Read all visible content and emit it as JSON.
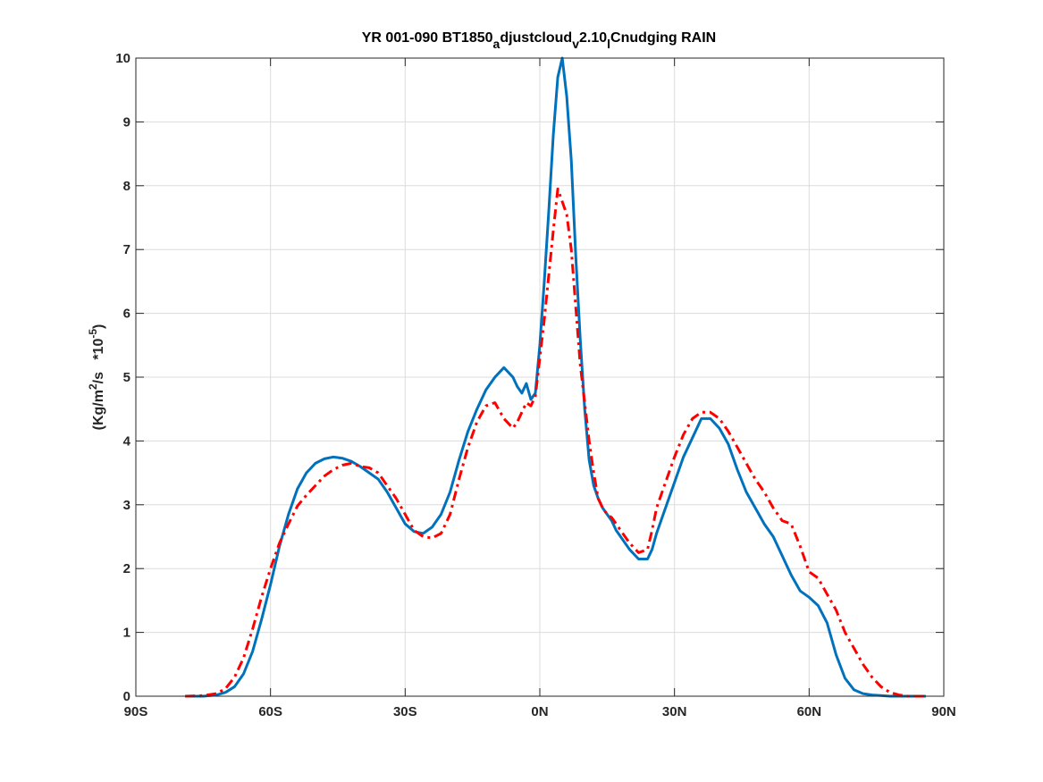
{
  "chart_data": {
    "type": "line",
    "title": {
      "prefix": "YR 001-090 BT1850",
      "sub1": "a",
      "mid1": "djustcloud",
      "sub2": "v",
      "mid2": "2.10",
      "sub3": "l",
      "suffix": "Cnudging RAIN"
    },
    "ylabel": {
      "prefix": "(Kg/m",
      "sup1": "2",
      "mid": "/s   *10",
      "sup2": "-5",
      "suffix": ")"
    },
    "xlim": [
      -90,
      90
    ],
    "ylim": [
      0,
      10
    ],
    "x_ticks": [
      -90,
      -60,
      -30,
      0,
      30,
      60,
      90
    ],
    "x_tick_labels": [
      "90S",
      "60S",
      "30S",
      "0N",
      "30N",
      "60N",
      "90N"
    ],
    "y_ticks": [
      0,
      1,
      2,
      3,
      4,
      5,
      6,
      7,
      8,
      9,
      10
    ],
    "y_tick_labels": [
      "0",
      "1",
      "2",
      "3",
      "4",
      "5",
      "6",
      "7",
      "8",
      "9",
      "10"
    ],
    "grid": true,
    "series": [
      {
        "color": "#0072BD",
        "style": "solid",
        "x": [
          -79,
          -75,
          -72,
          -70,
          -68,
          -66,
          -64,
          -62,
          -60,
          -58,
          -56,
          -54,
          -52,
          -50,
          -48,
          -46,
          -44,
          -42,
          -40,
          -38,
          -36,
          -34,
          -32,
          -30,
          -28,
          -26,
          -24,
          -22,
          -20,
          -18,
          -16,
          -14,
          -12,
          -10,
          -8,
          -6,
          -5,
          -4,
          -3,
          -2,
          -1,
          0,
          1,
          2,
          3,
          4,
          5,
          6,
          7,
          8,
          9,
          10,
          11,
          12,
          13,
          14,
          15,
          16,
          17,
          18,
          20,
          22,
          24,
          25,
          26,
          28,
          30,
          32,
          34,
          36,
          38,
          40,
          42,
          44,
          46,
          48,
          50,
          52,
          54,
          56,
          58,
          60,
          62,
          64,
          66,
          68,
          70,
          72,
          74,
          76,
          78,
          80,
          82,
          84,
          86
        ],
        "y": [
          0.0,
          0.0,
          0.02,
          0.06,
          0.15,
          0.35,
          0.7,
          1.2,
          1.75,
          2.35,
          2.85,
          3.25,
          3.5,
          3.65,
          3.72,
          3.75,
          3.73,
          3.68,
          3.6,
          3.5,
          3.4,
          3.2,
          2.95,
          2.7,
          2.58,
          2.55,
          2.65,
          2.85,
          3.2,
          3.7,
          4.15,
          4.5,
          4.8,
          5.0,
          5.15,
          5.0,
          4.85,
          4.75,
          4.9,
          4.65,
          4.75,
          5.5,
          6.5,
          7.6,
          8.8,
          9.7,
          10.0,
          9.4,
          8.4,
          6.9,
          5.6,
          4.5,
          3.7,
          3.3,
          3.1,
          2.95,
          2.85,
          2.75,
          2.6,
          2.5,
          2.3,
          2.15,
          2.15,
          2.3,
          2.55,
          2.95,
          3.35,
          3.75,
          4.05,
          4.35,
          4.35,
          4.2,
          3.95,
          3.55,
          3.2,
          2.95,
          2.7,
          2.5,
          2.2,
          1.9,
          1.65,
          1.55,
          1.42,
          1.15,
          0.65,
          0.28,
          0.1,
          0.04,
          0.02,
          0.01,
          0.0,
          0.0,
          0.0,
          0.0,
          0.0
        ]
      },
      {
        "color": "#FF0000",
        "style": "dash-dot",
        "x": [
          -79,
          -75,
          -72,
          -70,
          -68,
          -66,
          -64,
          -62,
          -60,
          -58,
          -56,
          -54,
          -52,
          -50,
          -48,
          -46,
          -44,
          -42,
          -40,
          -38,
          -36,
          -34,
          -32,
          -30,
          -28,
          -26,
          -24,
          -22,
          -20,
          -18,
          -16,
          -14,
          -12,
          -10,
          -8,
          -6,
          -5,
          -4,
          -3,
          -2,
          -1,
          0,
          1,
          2,
          3,
          4,
          5,
          6,
          7,
          8,
          9,
          10,
          11,
          12,
          13,
          14,
          15,
          16,
          17,
          18,
          20,
          22,
          24,
          25,
          26,
          28,
          30,
          32,
          34,
          36,
          38,
          40,
          42,
          44,
          46,
          48,
          50,
          52,
          54,
          56,
          58,
          60,
          62,
          64,
          66,
          68,
          70,
          72,
          74,
          76,
          78,
          80,
          82,
          84,
          86
        ],
        "y": [
          0.0,
          0.01,
          0.04,
          0.12,
          0.3,
          0.6,
          1.05,
          1.55,
          2.0,
          2.4,
          2.7,
          2.98,
          3.15,
          3.3,
          3.45,
          3.55,
          3.62,
          3.65,
          3.6,
          3.58,
          3.5,
          3.3,
          3.1,
          2.85,
          2.6,
          2.5,
          2.48,
          2.55,
          2.85,
          3.4,
          3.9,
          4.3,
          4.55,
          4.6,
          4.35,
          4.2,
          4.3,
          4.45,
          4.6,
          4.55,
          4.7,
          5.3,
          5.9,
          6.6,
          7.3,
          7.95,
          7.75,
          7.55,
          7.0,
          6.1,
          5.2,
          4.6,
          4.0,
          3.5,
          3.1,
          2.95,
          2.85,
          2.8,
          2.7,
          2.6,
          2.4,
          2.25,
          2.3,
          2.6,
          2.95,
          3.35,
          3.75,
          4.1,
          4.35,
          4.45,
          4.45,
          4.35,
          4.15,
          3.9,
          3.65,
          3.4,
          3.2,
          2.95,
          2.75,
          2.7,
          2.35,
          1.95,
          1.85,
          1.6,
          1.35,
          1.0,
          0.75,
          0.5,
          0.3,
          0.15,
          0.06,
          0.02,
          0.0,
          0.0,
          0.0
        ]
      }
    ]
  }
}
